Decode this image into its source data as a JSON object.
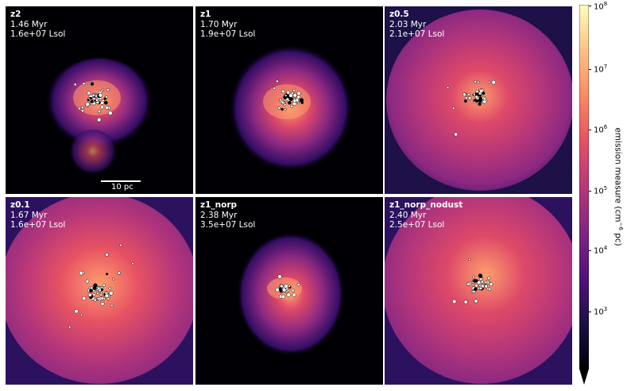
{
  "panels": [
    {
      "name": "z2",
      "time": "1.46 Myr",
      "lum": "1.6e+07 Lsol",
      "scale_label": "10 pc"
    },
    {
      "name": "z1",
      "time": "1.70 Myr",
      "lum": "1.9e+07 Lsol"
    },
    {
      "name": "z0.5",
      "time": "2.03 Myr",
      "lum": "2.1e+07 Lsol"
    },
    {
      "name": "z0.1",
      "time": "1.67 Myr",
      "lum": "1.6e+07 Lsol"
    },
    {
      "name": "z1_norp",
      "time": "2.38 Myr",
      "lum": "3.5e+07 Lsol"
    },
    {
      "name": "z1_norp_nodust",
      "time": "2.40 Myr",
      "lum": "2.5e+07 Lsol"
    }
  ],
  "colorbar": {
    "title": "emission measure (cm",
    "title_exp": "−6",
    "title_suffix": " pc)",
    "colormap": "magma",
    "ticks": [
      {
        "base": "10",
        "exp": "8"
      },
      {
        "base": "10",
        "exp": "7"
      },
      {
        "base": "10",
        "exp": "6"
      },
      {
        "base": "10",
        "exp": "5"
      },
      {
        "base": "10",
        "exp": "4"
      },
      {
        "base": "10",
        "exp": "3"
      }
    ]
  },
  "colors": {
    "background": "#000004",
    "outer": "#3b0f70",
    "mid": "#8c2981",
    "inner": "#de4968",
    "core": "#fe9f6d",
    "hot": "#fcfdbf",
    "star_fill": "#ffffff",
    "star_edge": "#000000"
  }
}
